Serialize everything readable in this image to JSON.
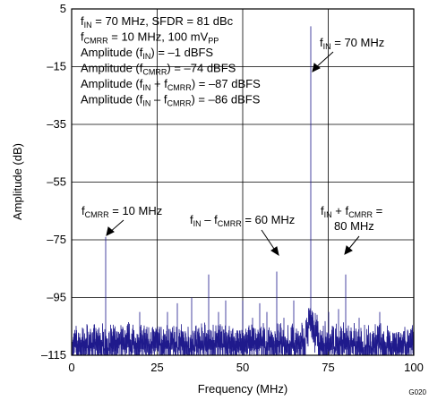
{
  "figure_code": "G020",
  "chart_data": {
    "type": "line",
    "xlabel": "Frequency (MHz)",
    "ylabel": "Amplitude (dB)",
    "xlim": [
      0,
      100
    ],
    "ylim": [
      -115,
      5
    ],
    "x_ticks": [
      "0",
      "25",
      "50",
      "75",
      "100"
    ],
    "y_ticks": [
      "5",
      "–15",
      "–35",
      "–55",
      "–75",
      "–95",
      "–115"
    ],
    "grid": true,
    "series": [
      {
        "color": "#1f1a8c",
        "noise_floor_db": -111,
        "spurs": [
          {
            "x": 10,
            "y": -74
          },
          {
            "x": 20,
            "y": -100
          },
          {
            "x": 25,
            "y": -105
          },
          {
            "x": 28,
            "y": -100
          },
          {
            "x": 31,
            "y": -97
          },
          {
            "x": 35,
            "y": -95
          },
          {
            "x": 38,
            "y": -104
          },
          {
            "x": 40,
            "y": -87
          },
          {
            "x": 43,
            "y": -100
          },
          {
            "x": 45,
            "y": -96
          },
          {
            "x": 50,
            "y": -96
          },
          {
            "x": 53,
            "y": -102
          },
          {
            "x": 55,
            "y": -97
          },
          {
            "x": 57,
            "y": -100
          },
          {
            "x": 60,
            "y": -86
          },
          {
            "x": 62,
            "y": -102
          },
          {
            "x": 65,
            "y": -96
          },
          {
            "x": 70,
            "y": -1
          },
          {
            "x": 75,
            "y": -100
          },
          {
            "x": 78,
            "y": -99
          },
          {
            "x": 80,
            "y": -87
          },
          {
            "x": 84,
            "y": -102
          },
          {
            "x": 90,
            "y": -100
          }
        ]
      }
    ],
    "info_box": [
      {
        "a": "f",
        "as": "IN",
        "b": " = 70 MHz, SFDR = 81 dBc"
      },
      {
        "a": "f",
        "as": "CMRR",
        "b": " = 10 MHz, 100 mV",
        "bs": "PP"
      },
      {
        "a": "Amplitude (f",
        "as": "IN",
        "b": ") = –1 dBFS"
      },
      {
        "a": "Amplitude (f",
        "as": "CMRR",
        "b": ") = –74 dBFS"
      },
      {
        "a": "Amplitude (f",
        "as": "IN",
        "b": " + f",
        "bs": "CMRR",
        "c": ") = –87 dBFS"
      },
      {
        "a": "Amplitude (f",
        "as": "IN",
        "b": " – f",
        "bs": "CMRR",
        "c": ") = –86 dBFS"
      }
    ],
    "annotations": {
      "fin": {
        "a": "f",
        "as": "IN",
        "b": " = 70 MHz"
      },
      "fcmrr": {
        "a": "f",
        "as": "CMRR",
        "b": " = 10 MHz"
      },
      "diff": {
        "a": "f",
        "as": "IN",
        "b": " – f",
        "bs": "CMRR",
        "c": " = 60 MHz"
      },
      "sum_line1": {
        "a": "f",
        "as": "IN",
        "b": " + f",
        "bs": "CMRR",
        "c": " ="
      },
      "sum_line2": "80 MHz"
    }
  }
}
